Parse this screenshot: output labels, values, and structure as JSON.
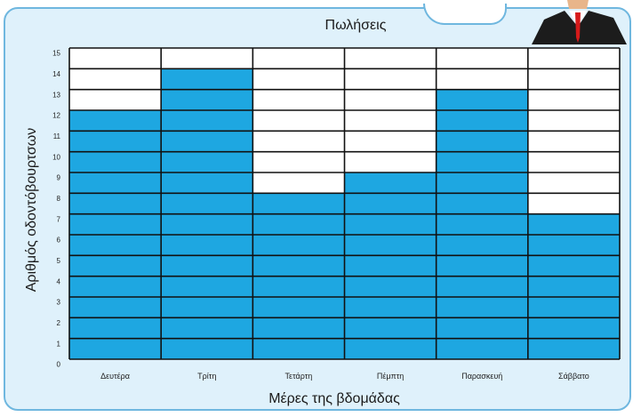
{
  "chart_data": {
    "type": "bar",
    "title": "Πωλήσεις",
    "xlabel": "Μέρες της βδομάδας",
    "ylabel": "Αριθμός οδοντόβουρτσων",
    "categories": [
      "Δευτέρα",
      "Τρίτη",
      "Τετάρτη",
      "Πέμπτη",
      "Παρασκευή",
      "Σάββατο"
    ],
    "values": [
      12,
      14,
      8,
      9,
      13,
      7
    ],
    "ylim": [
      0,
      15
    ],
    "yticks": [
      0,
      1,
      2,
      3,
      4,
      5,
      6,
      7,
      8,
      9,
      10,
      11,
      12,
      13,
      14,
      15
    ],
    "grid": true,
    "bar_color": "#1ea7e1"
  }
}
